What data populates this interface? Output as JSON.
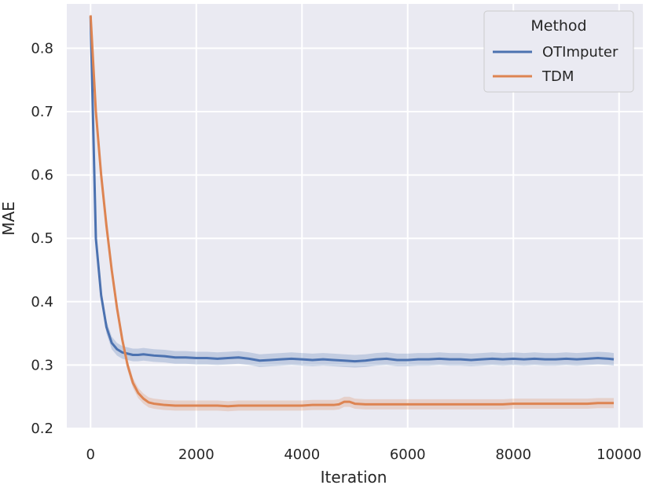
{
  "chart_data": {
    "type": "line",
    "xlabel": "Iteration",
    "ylabel": "MAE",
    "xlim": [
      -450,
      10450
    ],
    "ylim": [
      0.2,
      0.87
    ],
    "xticks": [
      "0",
      "2000",
      "4000",
      "6000",
      "8000",
      "10000"
    ],
    "yticks": [
      "0.2",
      "0.3",
      "0.4",
      "0.5",
      "0.6",
      "0.7",
      "0.8"
    ],
    "grid": true,
    "background": "#eaeaf2",
    "legend": {
      "title": "Method",
      "placement": "top-right"
    },
    "series": [
      {
        "name": "OTImputer",
        "color": "#4c72b0",
        "x": [
          0,
          100,
          200,
          300,
          400,
          500,
          600,
          700,
          800,
          900,
          1000,
          1200,
          1400,
          1600,
          1800,
          2000,
          2200,
          2400,
          2600,
          2800,
          3000,
          3200,
          3400,
          3600,
          3800,
          4000,
          4200,
          4400,
          4600,
          4800,
          5000,
          5200,
          5400,
          5600,
          5800,
          6000,
          6200,
          6400,
          6600,
          6800,
          7000,
          7200,
          7400,
          7600,
          7800,
          8000,
          8200,
          8400,
          8600,
          8800,
          9000,
          9200,
          9400,
          9600,
          9800,
          9900
        ],
        "y": [
          0.85,
          0.5,
          0.41,
          0.36,
          0.335,
          0.325,
          0.32,
          0.318,
          0.316,
          0.316,
          0.317,
          0.315,
          0.314,
          0.312,
          0.312,
          0.311,
          0.311,
          0.31,
          0.311,
          0.312,
          0.31,
          0.307,
          0.308,
          0.309,
          0.31,
          0.309,
          0.308,
          0.309,
          0.308,
          0.307,
          0.306,
          0.307,
          0.309,
          0.31,
          0.308,
          0.308,
          0.309,
          0.309,
          0.31,
          0.309,
          0.309,
          0.308,
          0.309,
          0.31,
          0.309,
          0.31,
          0.309,
          0.31,
          0.309,
          0.309,
          0.31,
          0.309,
          0.31,
          0.311,
          0.31,
          0.309
        ],
        "band": 0.01
      },
      {
        "name": "TDM",
        "color": "#dd8452",
        "x": [
          0,
          100,
          200,
          300,
          400,
          500,
          600,
          700,
          800,
          900,
          1000,
          1100,
          1200,
          1300,
          1400,
          1600,
          1800,
          2000,
          2200,
          2400,
          2600,
          2800,
          3000,
          3200,
          3400,
          3600,
          3800,
          4000,
          4200,
          4400,
          4600,
          4700,
          4800,
          4900,
          5000,
          5200,
          5400,
          5600,
          5800,
          6000,
          6200,
          6400,
          6600,
          6800,
          7000,
          7200,
          7400,
          7600,
          7800,
          8000,
          8200,
          8400,
          8600,
          8800,
          9000,
          9200,
          9400,
          9600,
          9800,
          9900
        ],
        "y": [
          0.852,
          0.7,
          0.6,
          0.52,
          0.45,
          0.39,
          0.34,
          0.3,
          0.272,
          0.256,
          0.247,
          0.241,
          0.239,
          0.238,
          0.237,
          0.236,
          0.236,
          0.236,
          0.236,
          0.236,
          0.235,
          0.236,
          0.236,
          0.236,
          0.236,
          0.236,
          0.236,
          0.236,
          0.237,
          0.237,
          0.237,
          0.238,
          0.242,
          0.242,
          0.239,
          0.238,
          0.238,
          0.238,
          0.238,
          0.238,
          0.238,
          0.238,
          0.238,
          0.238,
          0.238,
          0.238,
          0.238,
          0.238,
          0.238,
          0.239,
          0.239,
          0.239,
          0.239,
          0.239,
          0.239,
          0.239,
          0.239,
          0.24,
          0.24,
          0.24
        ],
        "band": 0.008
      }
    ]
  }
}
